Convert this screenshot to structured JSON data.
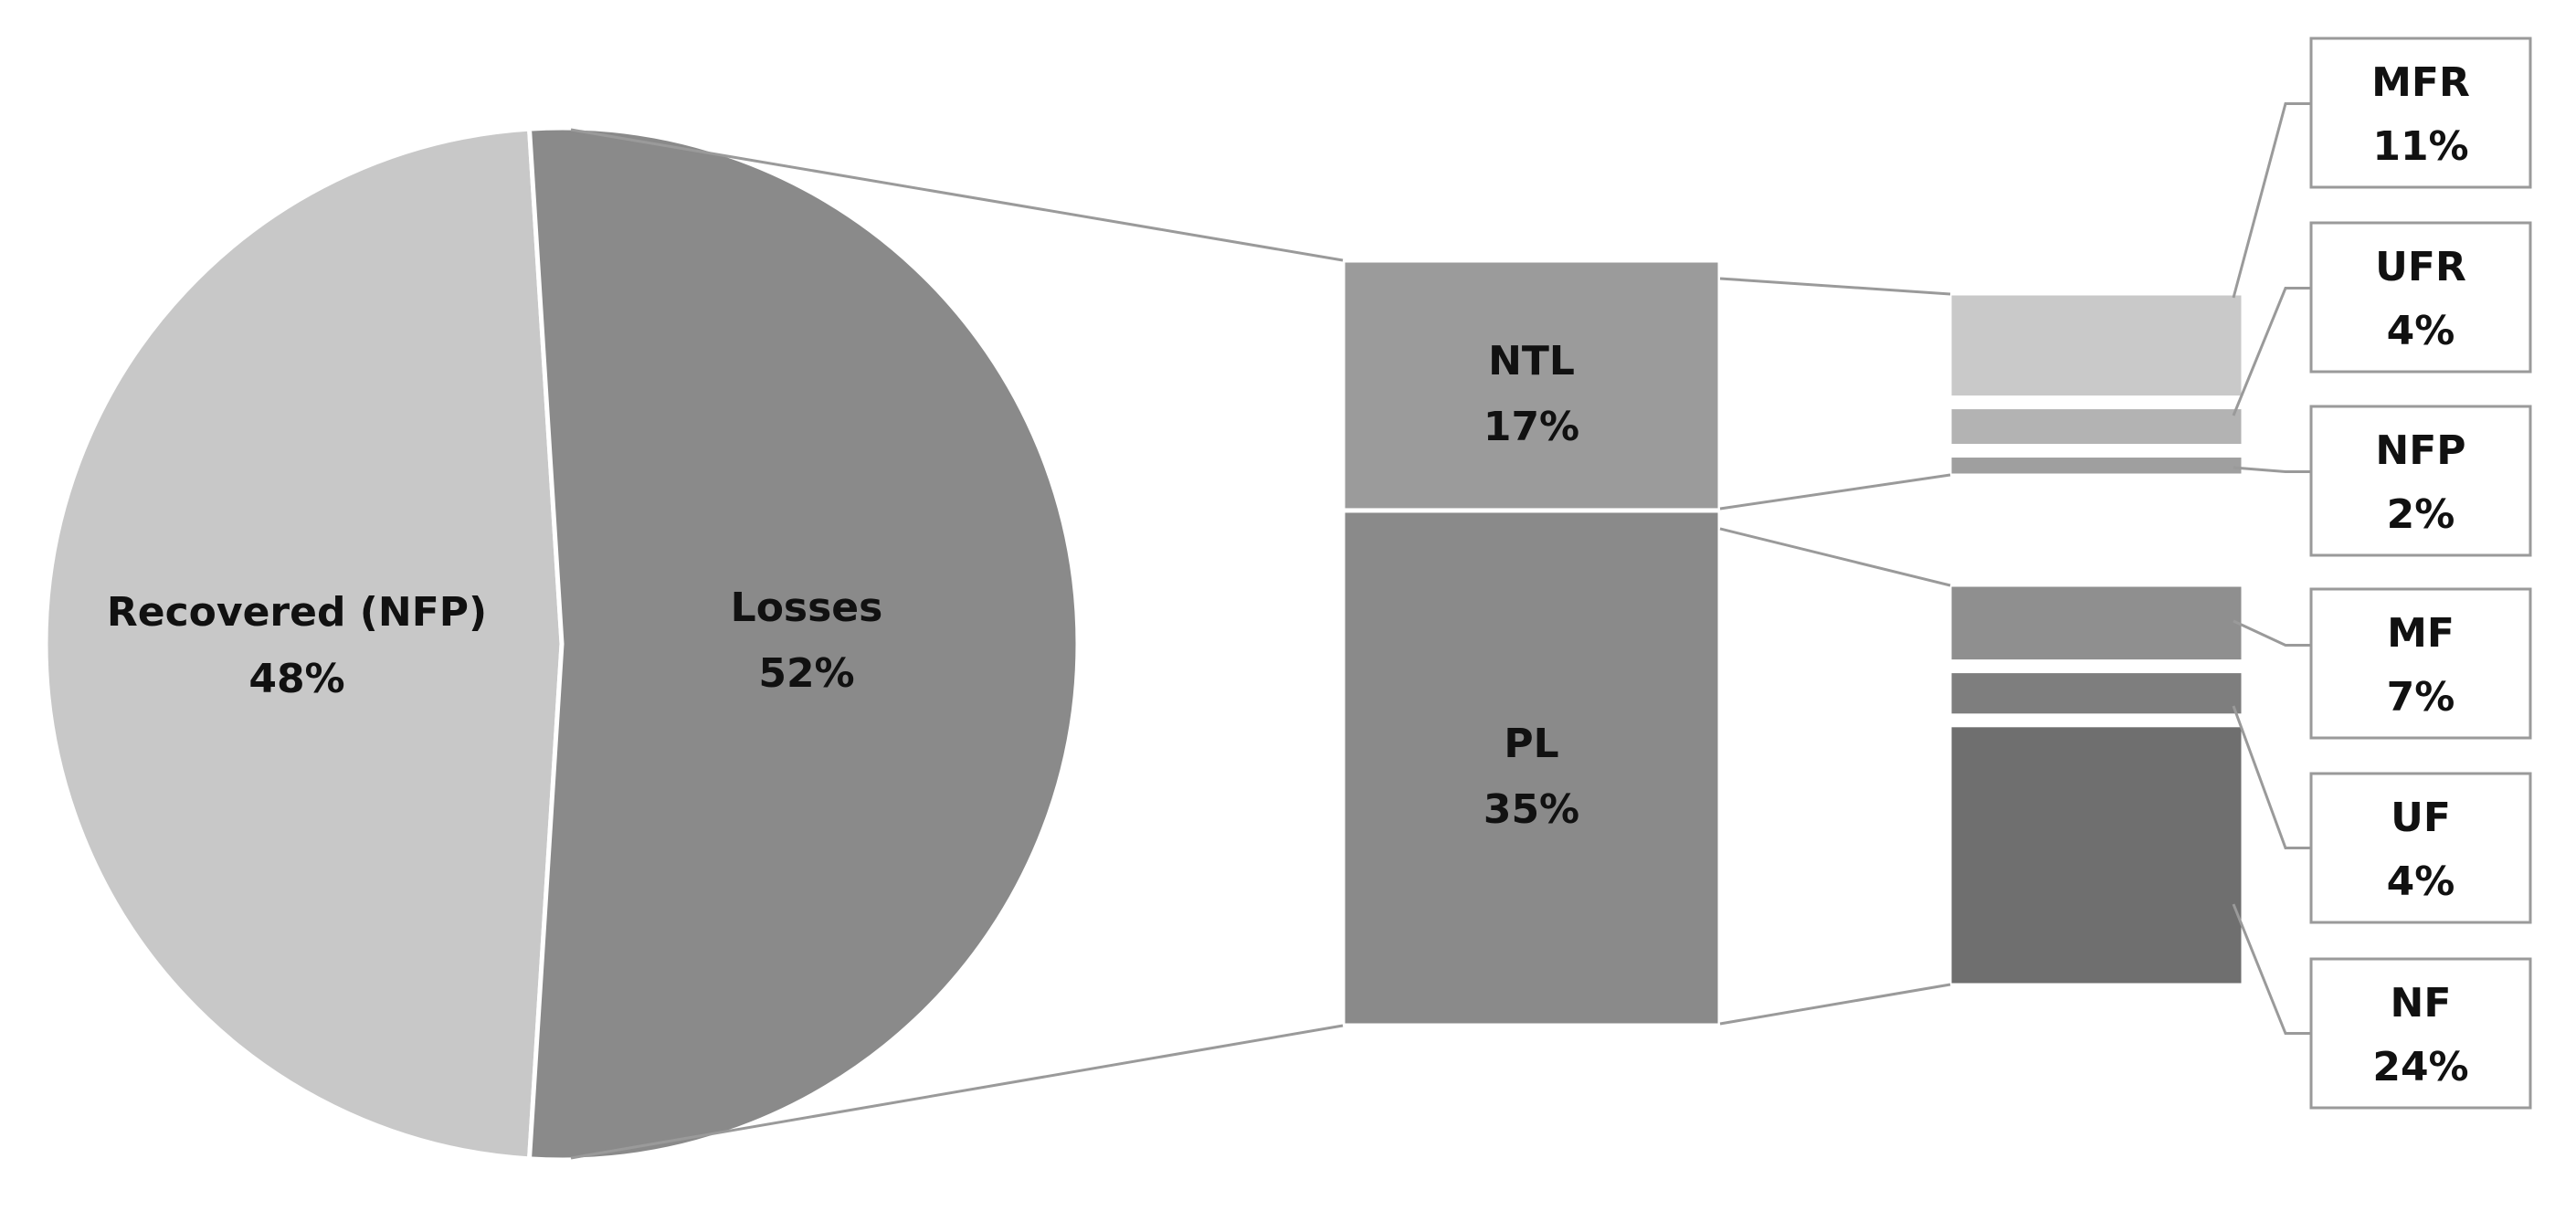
{
  "chart_data": {
    "type": "pie",
    "title": "",
    "pie": {
      "slices": [
        {
          "name": "Recovered (NFP)",
          "label": "Recovered (NFP)",
          "value_label": "48%",
          "value": 48,
          "color": "#c8c8c8"
        },
        {
          "name": "Losses",
          "label": "Losses",
          "value_label": "52%",
          "value": 52,
          "color": "#8a8a8a"
        }
      ]
    },
    "stacked_bar": {
      "parent": "Losses",
      "segments": [
        {
          "name": "NTL",
          "label": "NTL",
          "value_label": "17%",
          "value": 17,
          "color": "#9b9b9b"
        },
        {
          "name": "PL",
          "label": "PL",
          "value_label": "35%",
          "value": 35,
          "color": "#8a8a8a"
        }
      ]
    },
    "breakdown_bars": [
      {
        "parent": "NTL",
        "segments": [
          {
            "name": "MFR",
            "label": "MFR",
            "value_label": "11%",
            "value": 11,
            "color": "#c9c9c9"
          },
          {
            "name": "UFR",
            "label": "UFR",
            "value_label": "4%",
            "value": 4,
            "color": "#b3b3b3"
          },
          {
            "name": "NFP",
            "label": "NFP",
            "value_label": "2%",
            "value": 2,
            "color": "#9f9f9f"
          }
        ]
      },
      {
        "parent": "PL",
        "segments": [
          {
            "name": "MF",
            "label": "MF",
            "value_label": "7%",
            "value": 7,
            "color": "#8f8f8f"
          },
          {
            "name": "UF",
            "label": "UF",
            "value_label": "4%",
            "value": 4,
            "color": "#7e7e7e"
          },
          {
            "name": "NF",
            "label": "NF",
            "value_label": "24%",
            "value": 24,
            "color": "#6f6f6f"
          }
        ]
      }
    ]
  }
}
